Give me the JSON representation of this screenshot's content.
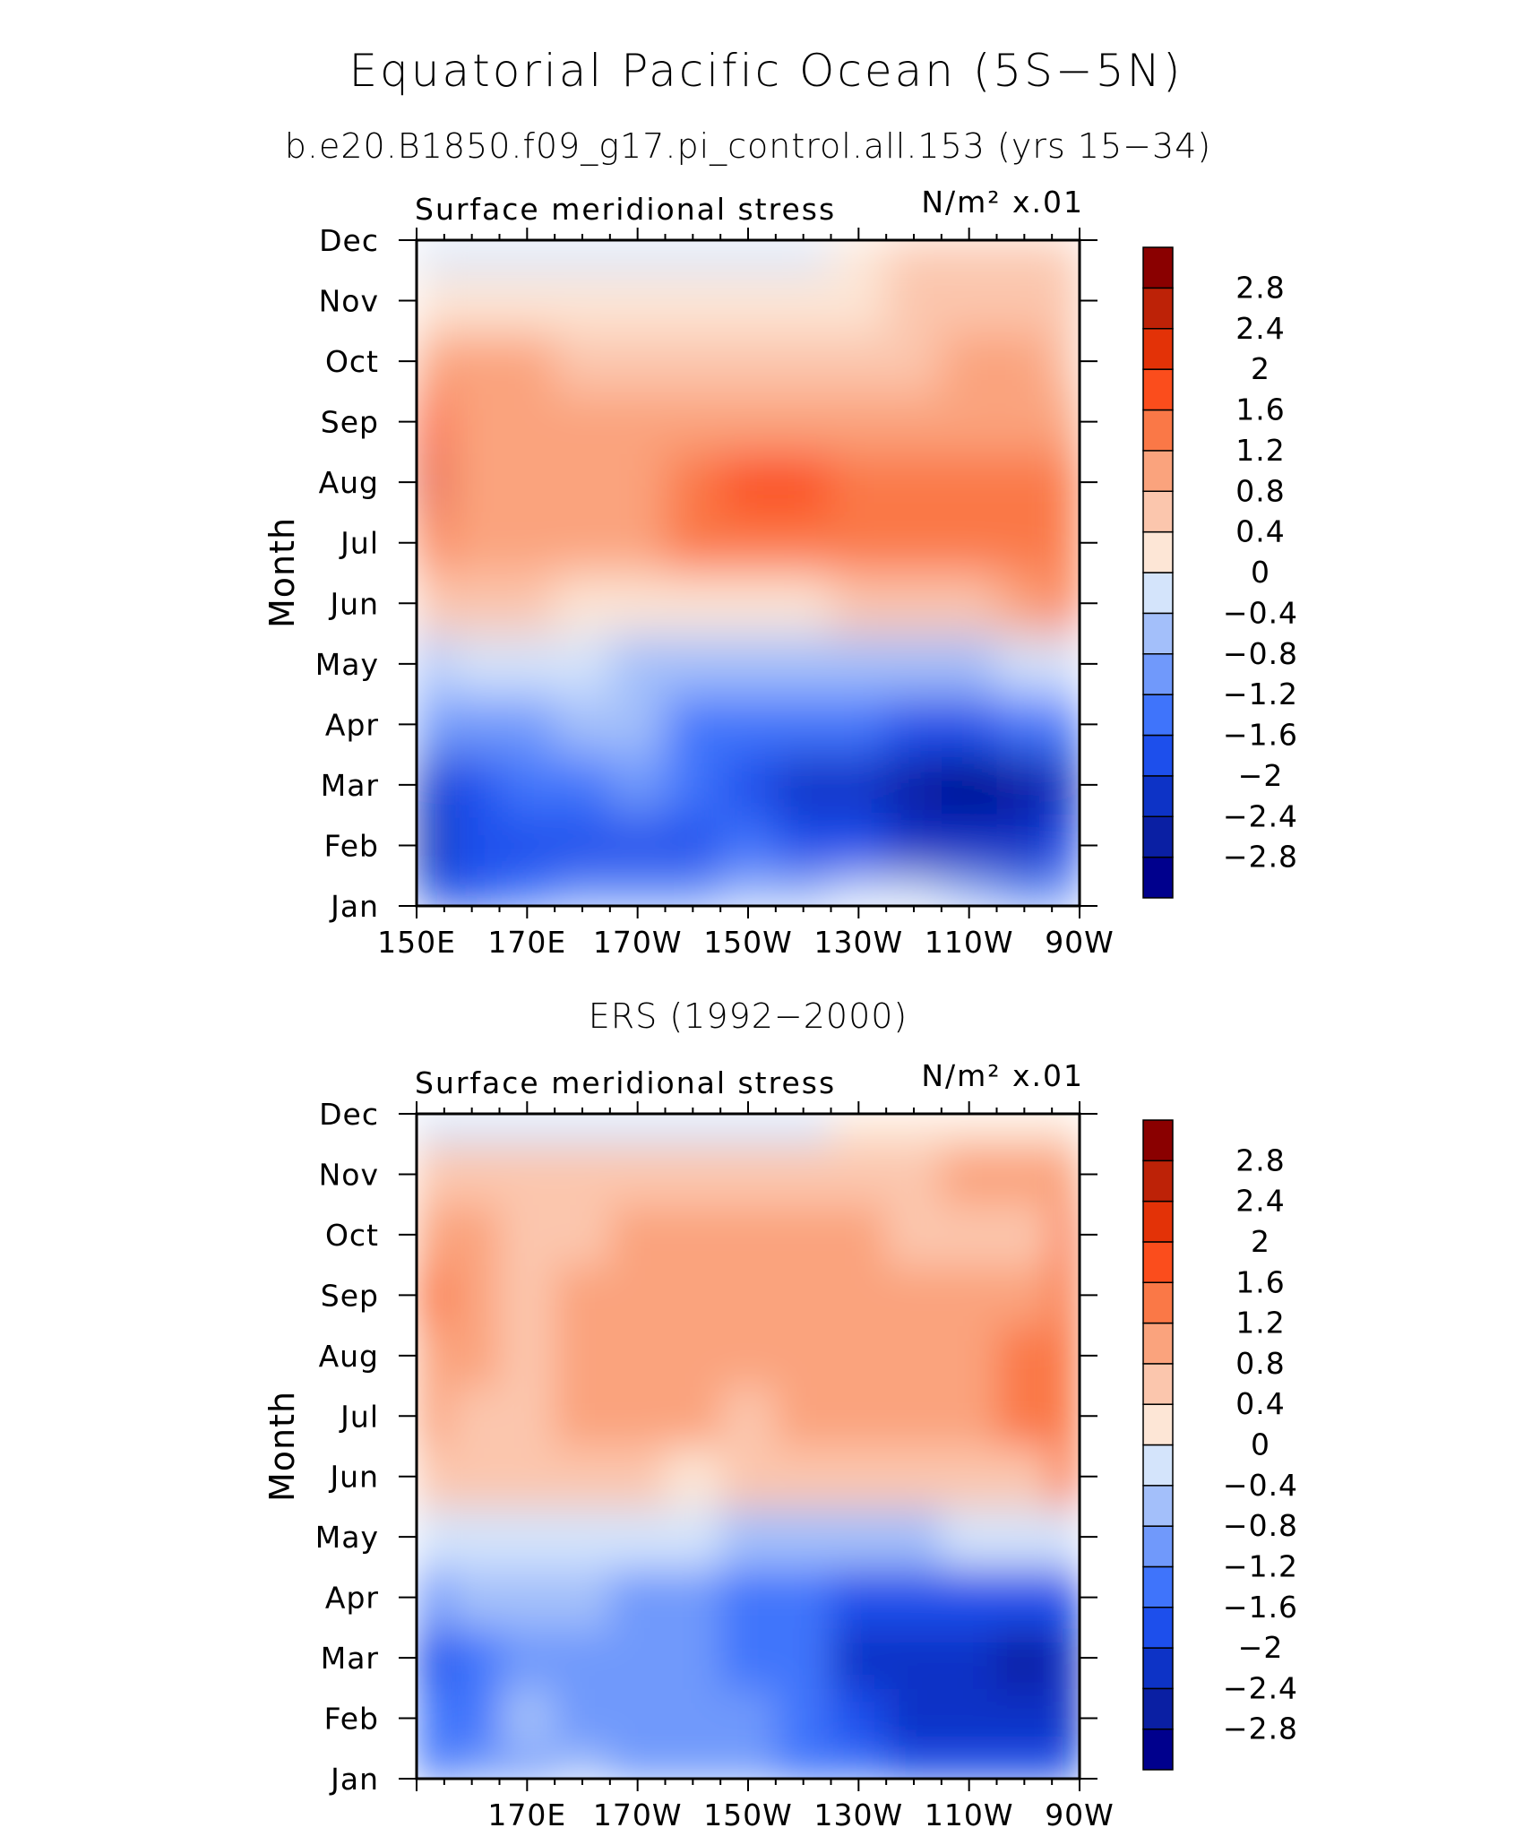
{
  "figure": {
    "title": "Equatorial Pacific Ocean (5S−5N)",
    "subtitle": "b.e20.B1850.f09_g17.pi_control.all.153 (yrs 15−34)"
  },
  "colorbar": {
    "levels": [
      -2.8,
      -2.4,
      -2,
      -1.6,
      -1.2,
      -0.8,
      -0.4,
      0,
      0.4,
      0.8,
      1.2,
      1.6,
      2,
      2.4,
      2.8
    ],
    "labels": [
      "−2.8",
      "−2.4",
      "−2",
      "−1.6",
      "−1.2",
      "−0.8",
      "−0.4",
      "0",
      "0.4",
      "0.8",
      "1.2",
      "1.6",
      "2",
      "2.4",
      "2.8"
    ],
    "colors": [
      "#00008d",
      "#0a1fa3",
      "#0d33c6",
      "#1d4fec",
      "#3f74fb",
      "#7099fb",
      "#a3bffa",
      "#d4e4fb",
      "#fde6d6",
      "#fbc6ad",
      "#faa37d",
      "#fa7847",
      "#fb4d1c",
      "#e33207",
      "#bd2207",
      "#8a0000"
    ]
  },
  "chart_data": [
    {
      "type": "heatmap",
      "panel_title": "",
      "left_string": "Surface meridional stress",
      "right_string": "N/m² x.01",
      "ylabel": "Month",
      "x": [
        150,
        160,
        170,
        180,
        190,
        200,
        210,
        220,
        230,
        240,
        250,
        260,
        270
      ],
      "x_tick_values": [
        150,
        170,
        190,
        210,
        230,
        250,
        270
      ],
      "x_tick_labels": [
        "150E",
        "170E",
        "170W",
        "150W",
        "130W",
        "110W",
        "90W"
      ],
      "y_tick_labels": [
        "Jan",
        "Feb",
        "Mar",
        "Apr",
        "May",
        "Jun",
        "Jul",
        "Aug",
        "Sep",
        "Oct",
        "Nov",
        "Dec"
      ],
      "xlim": [
        150,
        270
      ],
      "values": [
        [
          -1.9,
          -1.7,
          -1.5,
          -1.2,
          -1.0,
          -0.9,
          -0.7,
          -0.5,
          -0.3,
          -0.4,
          -0.6,
          -0.9,
          -1.2
        ],
        [
          -2.5,
          -2.0,
          -2.0,
          -1.8,
          -1.7,
          -1.7,
          -1.6,
          -1.8,
          -2.0,
          -2.2,
          -2.3,
          -2.4,
          -2.0
        ],
        [
          -2.2,
          -1.8,
          -1.5,
          -1.3,
          -1.1,
          -1.6,
          -1.8,
          -2.1,
          -2.4,
          -2.6,
          -2.9,
          -2.5,
          -2.2
        ],
        [
          -1.2,
          -1.0,
          -0.9,
          -0.8,
          -0.8,
          -1.3,
          -1.5,
          -1.6,
          -1.6,
          -1.7,
          -1.7,
          -1.6,
          -1.4
        ],
        [
          -0.5,
          -0.2,
          -0.3,
          -0.4,
          -0.5,
          -0.6,
          -0.6,
          -0.6,
          -0.6,
          -0.6,
          -0.5,
          -0.3,
          -0.2
        ],
        [
          0.6,
          0.4,
          0.4,
          0.3,
          0.2,
          0.2,
          0.2,
          0.3,
          0.4,
          0.4,
          0.6,
          0.8,
          1.2
        ],
        [
          1.5,
          0.9,
          0.9,
          1.0,
          1.1,
          1.2,
          1.2,
          1.3,
          1.4,
          1.4,
          1.4,
          1.5,
          1.4
        ],
        [
          2.0,
          1.0,
          1.0,
          1.0,
          1.1,
          1.5,
          1.7,
          1.6,
          1.5,
          1.5,
          1.5,
          1.5,
          1.3
        ],
        [
          1.8,
          1.0,
          1.0,
          1.0,
          1.0,
          1.0,
          1.0,
          1.0,
          1.0,
          1.0,
          1.0,
          1.0,
          0.9
        ],
        [
          1.1,
          0.8,
          0.8,
          0.7,
          0.7,
          0.6,
          0.6,
          0.6,
          0.5,
          0.5,
          0.8,
          0.9,
          0.6
        ],
        [
          0.2,
          0.3,
          0.3,
          0.2,
          0.2,
          0.2,
          0.2,
          0.3,
          0.3,
          0.5,
          0.6,
          0.6,
          0.5
        ],
        [
          -0.3,
          -0.2,
          -0.2,
          -0.2,
          -0.2,
          -0.3,
          -0.3,
          -0.2,
          0.2,
          0.4,
          0.5,
          0.5,
          0.4
        ]
      ]
    },
    {
      "type": "heatmap",
      "panel_title": "ERS (1992−2000)",
      "left_string": "Surface meridional stress",
      "right_string": "N/m² x.01",
      "ylabel": "Month",
      "x": [
        152,
        160,
        170,
        180,
        190,
        200,
        210,
        220,
        230,
        240,
        250,
        260,
        270
      ],
      "x_tick_values": [
        170,
        190,
        210,
        230,
        250,
        270
      ],
      "x_tick_labels": [
        "170E",
        "170W",
        "150W",
        "130W",
        "110W",
        "90W"
      ],
      "y_tick_labels": [
        "Jan",
        "Feb",
        "Mar",
        "Apr",
        "May",
        "Jun",
        "Jul",
        "Aug",
        "Sep",
        "Oct",
        "Nov",
        "Dec"
      ],
      "xlim": [
        150,
        270
      ],
      "values": [
        [
          -1.4,
          -1.2,
          -0.9,
          -0.8,
          -0.9,
          -1.0,
          -1.2,
          -1.3,
          -1.5,
          -1.7,
          -1.7,
          -1.8,
          -1.9
        ],
        [
          -1.6,
          -1.3,
          -0.8,
          -0.9,
          -1.0,
          -1.1,
          -1.2,
          -1.5,
          -1.8,
          -2.1,
          -2.3,
          -2.4,
          -2.3
        ],
        [
          -1.8,
          -1.6,
          -0.9,
          -1.0,
          -1.1,
          -1.2,
          -1.3,
          -1.6,
          -2.1,
          -2.3,
          -2.4,
          -2.6,
          -2.3
        ],
        [
          -0.9,
          -0.8,
          -0.7,
          -0.8,
          -1.0,
          -1.2,
          -1.4,
          -1.6,
          -1.8,
          -1.9,
          -1.9,
          -2.0,
          -1.9
        ],
        [
          -0.2,
          -0.3,
          -0.3,
          -0.2,
          -0.4,
          -0.4,
          -0.5,
          -0.6,
          -0.5,
          -0.5,
          -0.4,
          -0.3,
          -0.2
        ],
        [
          0.5,
          0.6,
          0.5,
          0.4,
          0.4,
          0.3,
          0.4,
          0.4,
          0.4,
          0.4,
          0.5,
          0.6,
          1.4
        ],
        [
          0.8,
          0.7,
          0.7,
          0.8,
          0.9,
          0.8,
          0.7,
          0.9,
          0.9,
          0.8,
          1.1,
          1.3,
          1.4
        ],
        [
          1.1,
          0.8,
          0.7,
          0.9,
          0.9,
          0.9,
          0.9,
          1.0,
          1.0,
          0.8,
          0.9,
          1.2,
          1.4
        ],
        [
          1.4,
          0.9,
          0.7,
          0.8,
          0.9,
          0.9,
          0.9,
          0.9,
          0.9,
          0.8,
          0.8,
          0.9,
          1.3
        ],
        [
          0.9,
          0.8,
          0.7,
          0.7,
          0.8,
          0.9,
          0.8,
          0.9,
          0.9,
          0.6,
          0.5,
          0.6,
          1.2
        ],
        [
          0.6,
          0.6,
          0.5,
          0.5,
          0.4,
          0.5,
          0.5,
          0.4,
          0.6,
          0.5,
          0.9,
          0.8,
          0.9
        ],
        [
          -0.3,
          -0.3,
          -0.3,
          -0.2,
          -0.2,
          -0.1,
          -0.2,
          -0.1,
          0.1,
          0.2,
          0.3,
          0.2,
          0.1
        ]
      ]
    }
  ]
}
